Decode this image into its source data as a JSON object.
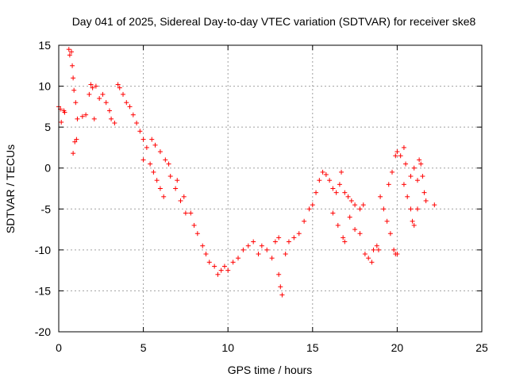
{
  "chart_data": {
    "type": "scatter",
    "title": "Day 041 of 2025, Sidereal Day-to-day VTEC variation (SDTVAR) for receiver ske8",
    "xlabel": "GPS time / hours",
    "ylabel": "SDTVAR / TECUs",
    "xlim": [
      0,
      25
    ],
    "ylim": [
      -20,
      15
    ],
    "x_ticks": [
      0,
      5,
      10,
      15,
      20,
      25
    ],
    "x_tick_labels": [
      "0",
      "5",
      "10",
      "15",
      "20",
      "25"
    ],
    "y_ticks": [
      15,
      10,
      5,
      0,
      -5,
      -10,
      -15,
      -20
    ],
    "y_tick_labels": [
      "15",
      "10",
      "5",
      "0",
      "-5",
      "-10",
      "-15",
      "-20"
    ],
    "grid": true,
    "marker": "+",
    "color": "#ff0000",
    "series": [
      {
        "name": "SDTVAR",
        "points": [
          [
            0.0,
            7.5
          ],
          [
            0.1,
            7.2
          ],
          [
            0.15,
            5.6
          ],
          [
            0.3,
            7.0
          ],
          [
            0.35,
            6.8
          ],
          [
            0.6,
            14.5
          ],
          [
            0.65,
            13.8
          ],
          [
            0.75,
            14.2
          ],
          [
            0.8,
            12.5
          ],
          [
            0.85,
            11.0
          ],
          [
            0.9,
            9.5
          ],
          [
            1.0,
            8.0
          ],
          [
            1.1,
            6.0
          ],
          [
            0.85,
            1.8
          ],
          [
            0.95,
            3.2
          ],
          [
            1.05,
            3.5
          ],
          [
            1.4,
            6.3
          ],
          [
            1.6,
            6.5
          ],
          [
            1.8,
            9.0
          ],
          [
            1.9,
            10.2
          ],
          [
            2.0,
            9.8
          ],
          [
            2.1,
            6.0
          ],
          [
            2.2,
            10.0
          ],
          [
            2.4,
            8.5
          ],
          [
            2.6,
            9.0
          ],
          [
            2.8,
            8.0
          ],
          [
            3.0,
            7.0
          ],
          [
            3.1,
            6.0
          ],
          [
            3.3,
            5.5
          ],
          [
            3.5,
            10.2
          ],
          [
            3.6,
            9.8
          ],
          [
            3.8,
            9.0
          ],
          [
            4.0,
            8.0
          ],
          [
            4.2,
            7.5
          ],
          [
            4.4,
            6.5
          ],
          [
            4.6,
            5.5
          ],
          [
            4.8,
            4.5
          ],
          [
            5.0,
            3.5
          ],
          [
            5.2,
            2.5
          ],
          [
            5.0,
            1.0
          ],
          [
            5.4,
            0.5
          ],
          [
            5.6,
            -0.5
          ],
          [
            5.8,
            -1.5
          ],
          [
            6.0,
            -2.5
          ],
          [
            6.2,
            -3.5
          ],
          [
            5.5,
            3.5
          ],
          [
            5.7,
            2.8
          ],
          [
            6.0,
            2.0
          ],
          [
            6.3,
            1.0
          ],
          [
            6.6,
            -1.0
          ],
          [
            6.9,
            -2.5
          ],
          [
            7.2,
            -4.0
          ],
          [
            7.5,
            -5.5
          ],
          [
            6.5,
            0.5
          ],
          [
            7.0,
            -1.5
          ],
          [
            7.4,
            -3.5
          ],
          [
            7.8,
            -5.5
          ],
          [
            8.0,
            -7.0
          ],
          [
            8.2,
            -8.0
          ],
          [
            8.5,
            -9.5
          ],
          [
            8.7,
            -10.5
          ],
          [
            8.9,
            -11.5
          ],
          [
            9.2,
            -12.0
          ],
          [
            9.4,
            -13.0
          ],
          [
            9.6,
            -12.5
          ],
          [
            9.8,
            -12.0
          ],
          [
            10.0,
            -12.5
          ],
          [
            10.3,
            -11.5
          ],
          [
            10.6,
            -11.0
          ],
          [
            10.9,
            -10.0
          ],
          [
            11.2,
            -9.5
          ],
          [
            11.5,
            -9.0
          ],
          [
            11.8,
            -10.5
          ],
          [
            12.0,
            -9.5
          ],
          [
            12.3,
            -10.0
          ],
          [
            12.6,
            -11.0
          ],
          [
            12.8,
            -9.0
          ],
          [
            13.0,
            -8.5
          ],
          [
            13.0,
            -13.0
          ],
          [
            13.1,
            -14.5
          ],
          [
            13.2,
            -15.5
          ],
          [
            13.4,
            -10.5
          ],
          [
            13.6,
            -9.0
          ],
          [
            13.9,
            -8.5
          ],
          [
            14.2,
            -8.0
          ],
          [
            14.5,
            -6.5
          ],
          [
            14.8,
            -5.0
          ],
          [
            15.0,
            -4.5
          ],
          [
            15.2,
            -3.0
          ],
          [
            15.4,
            -1.5
          ],
          [
            15.6,
            -0.5
          ],
          [
            15.8,
            -0.8
          ],
          [
            16.0,
            -1.5
          ],
          [
            16.2,
            -2.5
          ],
          [
            16.4,
            -3.0
          ],
          [
            16.6,
            -2.0
          ],
          [
            16.7,
            -0.5
          ],
          [
            16.9,
            -3.0
          ],
          [
            17.1,
            -3.5
          ],
          [
            17.3,
            -4.0
          ],
          [
            17.5,
            -4.5
          ],
          [
            17.8,
            -5.0
          ],
          [
            18.0,
            -4.5
          ],
          [
            16.2,
            -5.5
          ],
          [
            16.5,
            -7.0
          ],
          [
            16.8,
            -8.5
          ],
          [
            16.9,
            -9.0
          ],
          [
            17.2,
            -6.0
          ],
          [
            17.5,
            -7.5
          ],
          [
            17.8,
            -8.0
          ],
          [
            18.1,
            -10.5
          ],
          [
            18.3,
            -11.0
          ],
          [
            18.5,
            -11.5
          ],
          [
            18.6,
            -10.0
          ],
          [
            18.8,
            -9.5
          ],
          [
            18.9,
            -10.0
          ],
          [
            19.0,
            -3.5
          ],
          [
            19.2,
            -5.0
          ],
          [
            19.4,
            -6.5
          ],
          [
            19.6,
            -8.0
          ],
          [
            19.8,
            -10.0
          ],
          [
            19.9,
            -10.5
          ],
          [
            20.0,
            -10.5
          ],
          [
            19.5,
            -2.0
          ],
          [
            19.7,
            -0.5
          ],
          [
            19.9,
            1.5
          ],
          [
            20.0,
            2.0
          ],
          [
            20.2,
            1.5
          ],
          [
            20.4,
            2.5
          ],
          [
            20.5,
            0.5
          ],
          [
            20.4,
            -2.0
          ],
          [
            20.6,
            -3.5
          ],
          [
            20.8,
            -5.0
          ],
          [
            20.9,
            -6.5
          ],
          [
            21.0,
            -7.0
          ],
          [
            21.2,
            -5.0
          ],
          [
            20.8,
            -1.0
          ],
          [
            21.0,
            0.0
          ],
          [
            21.2,
            -1.5
          ],
          [
            21.3,
            1.0
          ],
          [
            21.4,
            0.5
          ],
          [
            21.5,
            -1.0
          ],
          [
            21.6,
            -3.0
          ],
          [
            21.7,
            -4.0
          ],
          [
            22.2,
            -4.5
          ]
        ]
      }
    ]
  }
}
